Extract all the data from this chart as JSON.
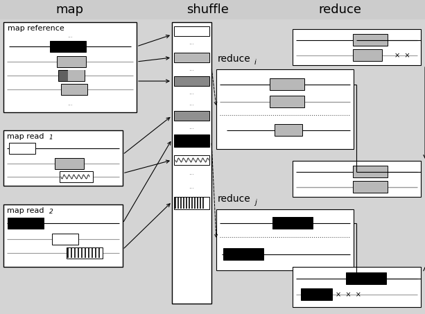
{
  "bg_color": "#d4d4d4",
  "header_color": "#cccccc",
  "white": "#ffffff",
  "black": "#000000",
  "gray_light": "#b8b8b8",
  "gray_med": "#909090",
  "gray_dark": "#505050",
  "title_map": "map",
  "title_shuffle": "shuffle",
  "title_reduce": "reduce",
  "fig_w": 6.13,
  "fig_h": 4.53,
  "dpi": 100
}
